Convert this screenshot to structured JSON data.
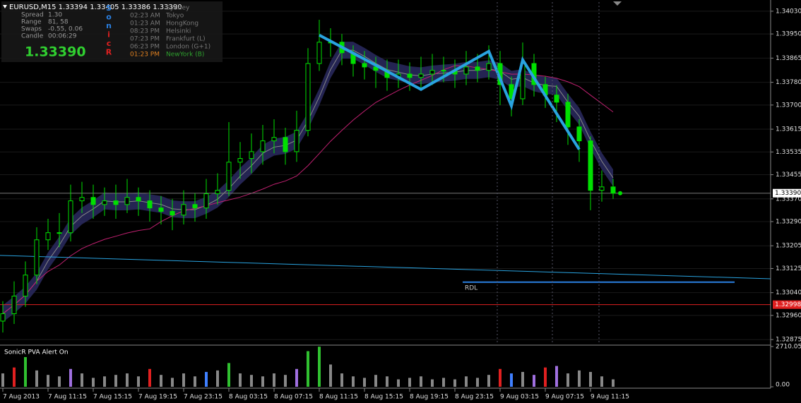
{
  "chart_data": [
    {
      "type": "candlestick",
      "title": "EURUSD,M15  1.33394 1.33405 1.33386 1.33390",
      "color": "#00e000",
      "categories": [
        "7 Aug 2013",
        null,
        null,
        null,
        "7 Aug 11:15",
        null,
        null,
        null,
        "7 Aug 15:15",
        null,
        null,
        null,
        "7 Aug 19:15",
        null,
        null,
        null,
        "7 Aug 23:15",
        null,
        null,
        null,
        "8 Aug 03:15",
        null,
        null,
        null,
        "8 Aug 07:15",
        null,
        null,
        null,
        "8 Aug 11:15",
        null,
        null,
        null,
        "8 Aug 15:15",
        null,
        null,
        null,
        "8 Aug 19:15",
        null,
        null,
        null,
        "8 Aug 23:15",
        null,
        null,
        null,
        "9 Aug 03:15",
        null,
        null,
        null,
        "9 Aug 07:15",
        null,
        null,
        null,
        "9 Aug 11:15",
        null,
        null
      ],
      "open": [
        1.3294,
        1.32966,
        1.33028,
        1.33102,
        1.33226,
        1.33251,
        1.33251,
        1.33363,
        1.33375,
        1.3335,
        1.33363,
        1.3335,
        1.33375,
        1.33363,
        1.33338,
        1.33326,
        1.33313,
        1.3335,
        1.33338,
        1.33388,
        1.334,
        1.33499,
        1.33512,
        1.33536,
        1.33574,
        1.33586,
        1.33536,
        1.33611,
        1.33846,
        1.33921,
        1.33921,
        1.33884,
        1.33846,
        1.33834,
        1.33822,
        1.33797,
        1.33809,
        1.33797,
        1.33809,
        1.33822,
        1.33822,
        1.33809,
        1.33834,
        1.33822,
        1.33846,
        1.33772,
        1.33722,
        1.33846,
        1.33772,
        1.33735,
        1.3371,
        1.33623,
        1.33574,
        1.334,
        1.33412
      ],
      "high": [
        1.3301,
        1.3308,
        1.3315,
        1.3327,
        1.333,
        1.3332,
        1.3342,
        1.3343,
        1.3342,
        1.3341,
        1.3342,
        1.3344,
        1.3341,
        1.334,
        1.3338,
        1.3337,
        1.334,
        1.3339,
        1.3344,
        1.3346,
        1.3364,
        1.3357,
        1.336,
        1.3363,
        1.3365,
        1.3362,
        1.3368,
        1.339,
        1.34,
        1.3397,
        1.3395,
        1.3391,
        1.3389,
        1.3387,
        1.3386,
        1.3386,
        1.3385,
        1.3387,
        1.3388,
        1.3387,
        1.3386,
        1.3389,
        1.3388,
        1.3391,
        1.3389,
        1.338,
        1.3392,
        1.3388,
        1.338,
        1.3377,
        1.3374,
        1.3365,
        1.3359,
        1.3347,
        1.3344
      ],
      "low": [
        1.329,
        1.3293,
        1.3299,
        1.3307,
        1.3319,
        1.332,
        1.3322,
        1.3332,
        1.333,
        1.3331,
        1.333,
        1.3332,
        1.3331,
        1.3329,
        1.3328,
        1.3326,
        1.3328,
        1.3329,
        1.333,
        1.3335,
        1.3338,
        1.3344,
        1.3346,
        1.3349,
        1.3353,
        1.3349,
        1.335,
        1.3359,
        1.3382,
        1.3387,
        1.3384,
        1.338,
        1.3379,
        1.3376,
        1.3375,
        1.3376,
        1.3375,
        1.3376,
        1.3377,
        1.3378,
        1.3376,
        1.3377,
        1.3378,
        1.3379,
        1.337,
        1.3366,
        1.337,
        1.3373,
        1.3369,
        1.3364,
        1.3356,
        1.335,
        1.3333,
        1.3336,
        1.3337
      ],
      "close": [
        1.32966,
        1.33028,
        1.33102,
        1.33226,
        1.33251,
        1.33251,
        1.33363,
        1.33375,
        1.3335,
        1.33363,
        1.3335,
        1.33375,
        1.33363,
        1.33338,
        1.33326,
        1.33313,
        1.3335,
        1.33338,
        1.33388,
        1.334,
        1.33499,
        1.33512,
        1.33536,
        1.33574,
        1.33586,
        1.33536,
        1.33611,
        1.33846,
        1.33921,
        1.33921,
        1.33884,
        1.33846,
        1.33834,
        1.33822,
        1.33797,
        1.33809,
        1.33797,
        1.33809,
        1.33822,
        1.33822,
        1.33809,
        1.33834,
        1.33822,
        1.33846,
        1.33772,
        1.33722,
        1.33846,
        1.33772,
        1.33735,
        1.3371,
        1.33623,
        1.33574,
        1.334,
        1.33412,
        1.3339
      ],
      "zigzag": {
        "color": "#29a3e0",
        "x": [
          28,
          37,
          43,
          45,
          46,
          51
        ],
        "values": [
          1.33946,
          1.33755,
          1.33889,
          1.33697,
          1.33859,
          1.33544
        ]
      },
      "trend_line": {
        "color": "#29a3e0",
        "values": [
          1.33171,
          1.33089
        ]
      },
      "rdl": {
        "label": "RDL",
        "color": "#2a7fe0",
        "value": 1.33077
      },
      "level": {
        "value": 1.32998,
        "color": "#e02020"
      },
      "current": {
        "value": 1.3339,
        "label": "1.33390"
      },
      "ylim": [
        1.32858,
        1.34062
      ],
      "yticks": [
        {
          "value": 1.3403,
          "label": "1.34030"
        },
        {
          "value": 1.3395,
          "label": "1.33950"
        },
        {
          "value": 1.33865,
          "label": "1.33865"
        },
        {
          "value": 1.3378,
          "label": "1.33780"
        },
        {
          "value": 1.337,
          "label": "1.33700"
        },
        {
          "value": 1.33615,
          "label": "1.33615"
        },
        {
          "value": 1.33535,
          "label": "1.33535"
        },
        {
          "value": 1.33455,
          "label": "1.33455"
        },
        {
          "value": 1.3337,
          "label": "1.33370"
        },
        {
          "value": 1.3329,
          "label": "1.33290"
        },
        {
          "value": 1.33205,
          "label": "1.33205"
        },
        {
          "value": 1.33125,
          "label": "1.33125"
        },
        {
          "value": 1.3304,
          "label": "1.33040"
        },
        {
          "value": 1.3296,
          "label": "1.32960"
        },
        {
          "value": 1.32875,
          "label": "1.32875"
        }
      ]
    },
    {
      "type": "bar",
      "title": "SonicR PVA  Alert On",
      "values": [
        900,
        1300,
        2000,
        1100,
        800,
        700,
        1200,
        900,
        600,
        700,
        800,
        900,
        700,
        1200,
        800,
        600,
        900,
        700,
        1000,
        1100,
        1600,
        900,
        800,
        700,
        900,
        800,
        1200,
        2400,
        2700,
        1500,
        900,
        700,
        600,
        800,
        700,
        500,
        600,
        700,
        500,
        600,
        500,
        700,
        600,
        800,
        1200,
        900,
        1000,
        800,
        1300,
        1400,
        900,
        1100,
        1000,
        700,
        500
      ],
      "colors": [
        "#888888",
        "#e02020",
        "#30c030",
        "#888888",
        "#888888",
        "#888888",
        "#a070e0",
        "#888888",
        "#888888",
        "#888888",
        "#888888",
        "#888888",
        "#888888",
        "#e02020",
        "#888888",
        "#888888",
        "#888888",
        "#888888",
        "#4080ff",
        "#888888",
        "#30c030",
        "#888888",
        "#888888",
        "#888888",
        "#888888",
        "#888888",
        "#a070e0",
        "#30c030",
        "#30c030",
        "#888888",
        "#888888",
        "#888888",
        "#888888",
        "#888888",
        "#888888",
        "#888888",
        "#888888",
        "#888888",
        "#888888",
        "#888888",
        "#888888",
        "#888888",
        "#888888",
        "#888888",
        "#e02020",
        "#4080ff",
        "#888888",
        "#a070e0",
        "#e02020",
        "#a070e0",
        "#888888",
        "#888888",
        "#888888",
        "#888888",
        "#888888"
      ],
      "ylim": [
        0,
        2710.05
      ],
      "yticks": [
        {
          "value": 0,
          "label": "0.00"
        },
        2710.05
      ]
    }
  ],
  "info_panel": {
    "rows": [
      {
        "label": "Spread",
        "value": "1.30"
      },
      {
        "label": "Range",
        "value": "81, 58"
      },
      {
        "label": "Swaps",
        "value": "-0.55, 0.06"
      },
      {
        "label": "Candle",
        "value": "00:06:29"
      }
    ],
    "price": "1.33390",
    "sonic": [
      "S",
      "o",
      "n",
      "i",
      "c",
      "R"
    ],
    "sessions": [
      {
        "time": null,
        "city": "Sydney"
      },
      {
        "time": "02:23 AM",
        "city": "Tokyo"
      },
      {
        "time": "01:23 AM",
        "city": "HongKong"
      },
      {
        "time": "08:23 PM",
        "city": "Helsinki"
      },
      {
        "time": "07:23 PM",
        "city": "Frankfurt  (L)"
      },
      {
        "time": "06:23 PM",
        "city": "London  (G+1)"
      },
      {
        "time": "01:23 PM",
        "city": "NewYork  (B)"
      }
    ]
  }
}
